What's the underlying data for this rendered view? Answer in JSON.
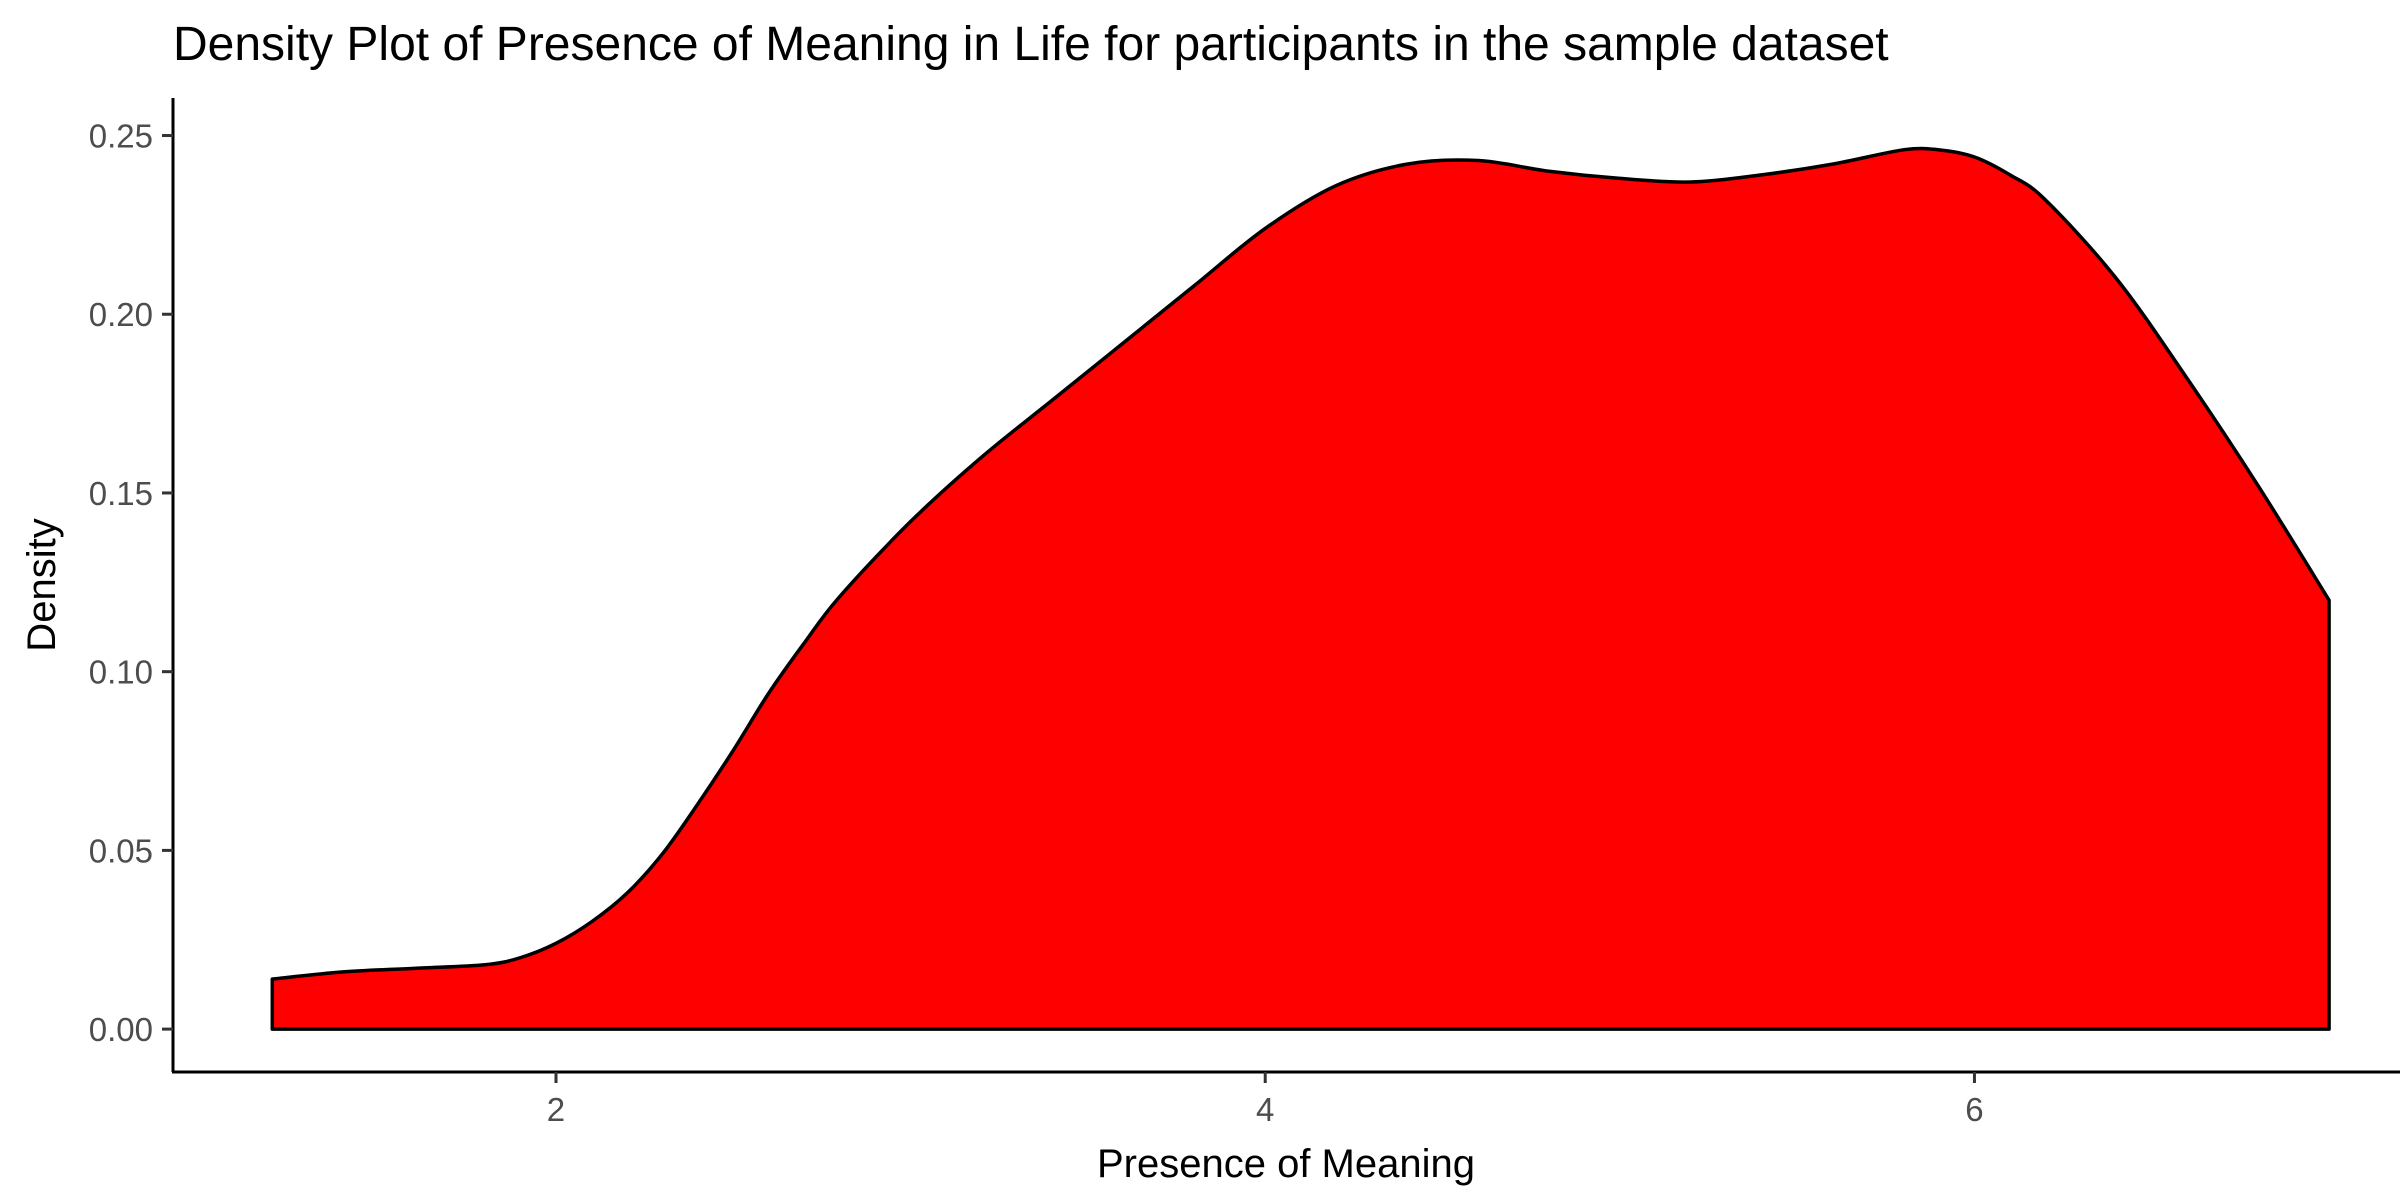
{
  "chart_data": {
    "type": "area",
    "title": "Density Plot of Presence of Meaning in Life for participants in the sample dataset",
    "xlabel": "Presence of Meaning",
    "ylabel": "Density",
    "xlim": [
      0.92,
      7.2
    ],
    "ylim": [
      -0.012,
      0.2605
    ],
    "x_ticks": [
      2,
      4,
      6
    ],
    "x_tick_labels": [
      "2",
      "4",
      "6"
    ],
    "y_ticks": [
      0.0,
      0.05,
      0.1,
      0.15,
      0.2,
      0.25
    ],
    "y_tick_labels": [
      "0.00",
      "0.05",
      "0.10",
      "0.15",
      "0.20",
      "0.25"
    ],
    "grid": false,
    "legend": "none",
    "fill_color": "#ff0000",
    "outline_color": "#000000",
    "series": [
      {
        "x": [
          1.2,
          1.4,
          1.6,
          1.8,
          1.9,
          2.0,
          2.1,
          2.2,
          2.3,
          2.4,
          2.5,
          2.6,
          2.7,
          2.8,
          3.0,
          3.2,
          3.4,
          3.6,
          3.8,
          4.0,
          4.2,
          4.4,
          4.6,
          4.8,
          5.0,
          5.2,
          5.4,
          5.6,
          5.8,
          5.9,
          6.0,
          6.1,
          6.2,
          6.4,
          6.6,
          6.8,
          7.0
        ],
        "y": [
          0.014,
          0.016,
          0.017,
          0.018,
          0.02,
          0.024,
          0.03,
          0.038,
          0.049,
          0.063,
          0.078,
          0.094,
          0.108,
          0.121,
          0.142,
          0.16,
          0.176,
          0.192,
          0.208,
          0.224,
          0.236,
          0.242,
          0.243,
          0.24,
          0.238,
          0.237,
          0.239,
          0.242,
          0.246,
          0.246,
          0.244,
          0.239,
          0.232,
          0.21,
          0.182,
          0.152,
          0.12
        ]
      }
    ]
  }
}
